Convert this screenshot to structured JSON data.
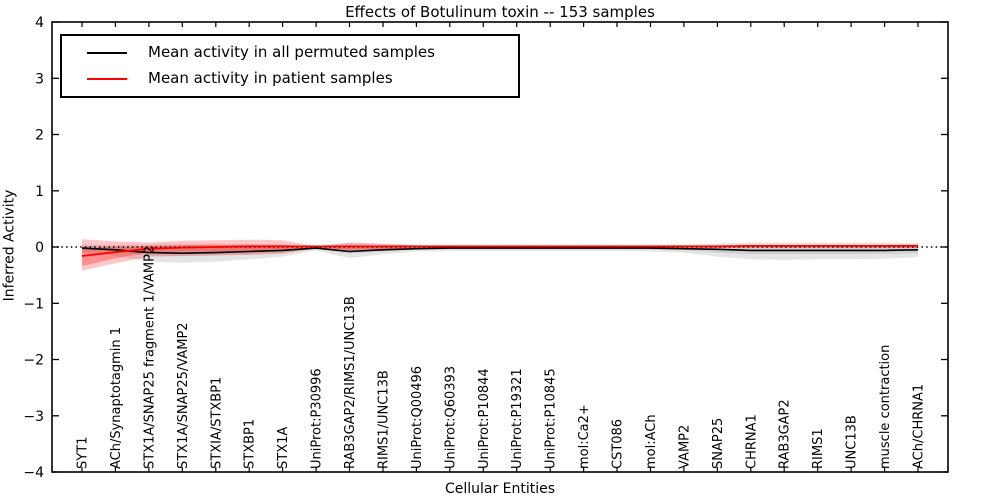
{
  "title": "Effects of Botulinum toxin -- 153 samples",
  "axes": {
    "xlabel": "Cellular Entities",
    "ylabel": "Inferred Activity",
    "y_ticks": [
      4,
      3,
      2,
      1,
      0,
      -1,
      -2,
      -3,
      -4
    ],
    "ylim": [
      -4,
      4
    ],
    "zero_line_style": "dotted"
  },
  "legend": {
    "items": [
      {
        "label": "Mean activity in all permuted samples",
        "color": "#000000"
      },
      {
        "label": "Mean activity in patient samples",
        "color": "#ff0000"
      }
    ]
  },
  "colors": {
    "permuted_line": "#000000",
    "patient_line": "#ff0000",
    "permuted_band": "rgba(0,0,0,0.10)",
    "permuted_band_inner": "rgba(0,0,0,0.09)",
    "patient_band": "rgba(255,0,0,0.22)",
    "patient_band_inner": "rgba(255,0,0,0.28)",
    "axis": "#000000",
    "background": "#ffffff"
  },
  "chart_data": {
    "type": "line",
    "title": "Effects of Botulinum toxin -- 153 samples",
    "xlabel": "Cellular Entities",
    "ylabel": "Inferred Activity",
    "ylim": [
      -4,
      4
    ],
    "grid": false,
    "legend_position": "upper left",
    "categories": [
      "SYT1",
      "ACh/Synaptotagmin 1",
      "STX1A/SNAP25 fragment 1/VAMP2",
      "STX1A/SNAP25/VAMP2",
      "STXIA/STXBP1",
      "STXBP1",
      "STX1A",
      "UniProt:P30996",
      "RAB3GAP2/RIMS1/UNC13B",
      "RIMS1/UNC13B",
      "UniProt:Q00496",
      "UniProt:Q60393",
      "UniProt:P10844",
      "UniProt:P19321",
      "UniProt:P10845",
      "mol:Ca2+",
      "CST086",
      "mol:ACh",
      "VAMP2",
      "SNAP25",
      "CHRNA1",
      "RAB3GAP2",
      "RIMS1",
      "UNC13B",
      "muscle contraction",
      "ACh/CHRNA1"
    ],
    "series": [
      {
        "name": "Mean activity in all permuted samples",
        "color": "#000000",
        "values": [
          -0.02,
          -0.05,
          -0.1,
          -0.11,
          -0.1,
          -0.08,
          -0.06,
          -0.02,
          -0.08,
          -0.05,
          -0.03,
          -0.02,
          -0.02,
          -0.02,
          -0.02,
          -0.02,
          -0.02,
          -0.02,
          -0.03,
          -0.04,
          -0.06,
          -0.06,
          -0.06,
          -0.06,
          -0.06,
          -0.05
        ]
      },
      {
        "name": "Mean activity in patient samples",
        "color": "#ff0000",
        "values": [
          -0.16,
          -0.09,
          -0.03,
          -0.01,
          0.0,
          0.01,
          0.01,
          0.01,
          0.01,
          0.01,
          0.01,
          0.01,
          0.01,
          0.01,
          0.01,
          0.01,
          0.01,
          0.01,
          0.01,
          0.01,
          0.02,
          0.02,
          0.02,
          0.02,
          0.02,
          0.02
        ]
      }
    ],
    "bands": [
      {
        "name": "permuted-sample-range",
        "series": "Mean activity in all permuted samples",
        "upper": [
          0.04,
          0.04,
          0.05,
          0.06,
          0.06,
          0.05,
          0.04,
          0.02,
          0.07,
          0.05,
          0.03,
          0.03,
          0.03,
          0.03,
          0.03,
          0.03,
          0.03,
          0.03,
          0.04,
          0.06,
          0.08,
          0.08,
          0.08,
          0.08,
          0.08,
          0.07
        ],
        "lower": [
          -0.1,
          -0.16,
          -0.26,
          -0.28,
          -0.26,
          -0.22,
          -0.17,
          -0.06,
          -0.2,
          -0.13,
          -0.08,
          -0.07,
          -0.07,
          -0.07,
          -0.07,
          -0.07,
          -0.07,
          -0.08,
          -0.1,
          -0.17,
          -0.22,
          -0.23,
          -0.22,
          -0.22,
          -0.21,
          -0.18
        ]
      },
      {
        "name": "permuted-sample-inner-range",
        "series": "Mean activity in all permuted samples",
        "upper": [
          0.01,
          0.01,
          0.01,
          0.01,
          0.01,
          0.01,
          0.01,
          0.0,
          0.02,
          0.01,
          0.01,
          0.01,
          0.01,
          0.01,
          0.01,
          0.01,
          0.01,
          0.01,
          0.01,
          0.02,
          0.03,
          0.03,
          0.03,
          0.03,
          0.03,
          0.03
        ],
        "lower": [
          -0.06,
          -0.09,
          -0.15,
          -0.16,
          -0.15,
          -0.13,
          -0.1,
          -0.04,
          -0.12,
          -0.08,
          -0.05,
          -0.04,
          -0.04,
          -0.04,
          -0.04,
          -0.04,
          -0.04,
          -0.05,
          -0.06,
          -0.1,
          -0.13,
          -0.13,
          -0.13,
          -0.13,
          -0.12,
          -0.11
        ]
      },
      {
        "name": "patient-sample-range",
        "series": "Mean activity in patient samples",
        "upper": [
          0.14,
          0.1,
          0.08,
          0.11,
          0.12,
          0.13,
          0.12,
          0.01,
          0.08,
          0.06,
          0.03,
          0.03,
          0.03,
          0.03,
          0.03,
          0.03,
          0.03,
          0.03,
          0.03,
          0.03,
          0.04,
          0.04,
          0.04,
          0.04,
          0.04,
          0.05
        ],
        "lower": [
          -0.42,
          -0.29,
          -0.17,
          -0.16,
          -0.15,
          -0.14,
          -0.12,
          -0.02,
          -0.09,
          -0.07,
          -0.03,
          -0.02,
          -0.02,
          -0.02,
          -0.02,
          -0.02,
          -0.02,
          -0.02,
          -0.02,
          -0.02,
          -0.01,
          -0.01,
          -0.01,
          -0.01,
          -0.01,
          -0.02
        ]
      },
      {
        "name": "patient-sample-inner-range",
        "series": "Mean activity in patient samples",
        "upper": [
          -0.02,
          0.0,
          0.02,
          0.03,
          0.04,
          0.04,
          0.04,
          0.0,
          0.03,
          0.02,
          0.01,
          0.01,
          0.01,
          0.01,
          0.01,
          0.01,
          0.01,
          0.01,
          0.01,
          0.01,
          0.02,
          0.02,
          0.02,
          0.02,
          0.02,
          0.02
        ],
        "lower": [
          -0.34,
          -0.2,
          -0.09,
          -0.08,
          -0.08,
          -0.07,
          -0.06,
          -0.01,
          -0.05,
          -0.04,
          -0.01,
          -0.01,
          -0.01,
          -0.01,
          -0.01,
          -0.01,
          -0.01,
          -0.01,
          -0.01,
          -0.01,
          -0.01,
          -0.01,
          -0.01,
          -0.01,
          -0.01,
          -0.01
        ]
      }
    ],
    "zero_line": {
      "y": 0,
      "style": "dotted",
      "color": "#000000"
    }
  }
}
